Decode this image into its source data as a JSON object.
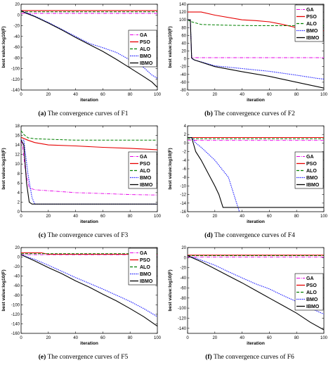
{
  "legend_labels": [
    "GA",
    "PSO",
    "ALO",
    "BMO",
    "IBMO"
  ],
  "series_colors": {
    "GA": "#e600e6",
    "PSO": "#e60000",
    "ALO": "#008000",
    "BMO": "#1a1aff",
    "IBMO": "#000000"
  },
  "panels": [
    {
      "letter": "(a)",
      "caption_text": "The convergence curves of F1"
    },
    {
      "letter": "(b)",
      "caption_text": "The convergence curves of F2"
    },
    {
      "letter": "(c)",
      "caption_text": "The convergence curves of F3"
    },
    {
      "letter": "(d)",
      "caption_text": "The convergence curves of F4"
    },
    {
      "letter": "(e)",
      "caption_text": "The convergence curves of F5"
    },
    {
      "letter": "(f)",
      "caption_text": "The convergence curves of F6"
    }
  ],
  "chart_data": [
    {
      "type": "line",
      "xlabel": "iteration",
      "ylabel": "best value:log10(F)",
      "xlim": [
        0,
        100
      ],
      "ylim": [
        -140,
        20
      ],
      "xticks": [
        0,
        20,
        40,
        60,
        80,
        100
      ],
      "yticks": [
        20,
        0,
        -20,
        -40,
        -60,
        -80,
        -100,
        -120,
        -140
      ],
      "legend_position": "right-middle",
      "series": [
        {
          "name": "GA",
          "x": [
            0,
            100
          ],
          "y": [
            3,
            3
          ]
        },
        {
          "name": "PSO",
          "x": [
            0,
            100
          ],
          "y": [
            8,
            8
          ]
        },
        {
          "name": "ALO",
          "x": [
            0,
            100
          ],
          "y": [
            6,
            6
          ]
        },
        {
          "name": "BMO",
          "x": [
            0,
            3,
            10,
            20,
            30,
            40,
            50,
            60,
            70,
            80,
            90,
            96,
            100
          ],
          "y": [
            8,
            5,
            -2,
            -14,
            -27,
            -40,
            -53,
            -61,
            -70,
            -84,
            -98,
            -112,
            -118
          ]
        },
        {
          "name": "IBMO",
          "x": [
            0,
            3,
            10,
            20,
            30,
            40,
            50,
            60,
            70,
            80,
            90,
            96,
            100
          ],
          "y": [
            8,
            4,
            -3,
            -15,
            -28,
            -42,
            -55,
            -68,
            -83,
            -99,
            -115,
            -125,
            -135
          ]
        }
      ]
    },
    {
      "type": "line",
      "xlabel": "iteration",
      "ylabel": "best value:log10(F)",
      "xlim": [
        0,
        100
      ],
      "ylim": [
        -80,
        140
      ],
      "xticks": [
        0,
        20,
        40,
        60,
        80,
        100
      ],
      "yticks": [
        140,
        120,
        100,
        80,
        60,
        40,
        20,
        0,
        -20,
        -40,
        -60,
        -80
      ],
      "legend_position": "top-right",
      "series": [
        {
          "name": "GA",
          "x": [
            0,
            2,
            3,
            100
          ],
          "y": [
            100,
            100,
            3,
            3
          ]
        },
        {
          "name": "PSO",
          "x": [
            0,
            10,
            20,
            40,
            50,
            60,
            70,
            80,
            90,
            100
          ],
          "y": [
            120,
            120,
            112,
            100,
            98,
            95,
            88,
            80,
            75,
            72
          ]
        },
        {
          "name": "ALO",
          "x": [
            0,
            3,
            10,
            30,
            50,
            60,
            80,
            100
          ],
          "y": [
            100,
            95,
            88,
            86,
            85,
            85,
            85,
            85
          ]
        },
        {
          "name": "BMO",
          "x": [
            0,
            2,
            3,
            4,
            20,
            40,
            60,
            80,
            95,
            100
          ],
          "y": [
            100,
            100,
            2,
            -2,
            -18,
            -25,
            -32,
            -42,
            -50,
            -52
          ]
        },
        {
          "name": "IBMO",
          "x": [
            0,
            2,
            3,
            5,
            20,
            40,
            60,
            80,
            100
          ],
          "y": [
            100,
            100,
            2,
            -3,
            -20,
            -33,
            -45,
            -60,
            -75
          ]
        }
      ]
    },
    {
      "type": "line",
      "xlabel": "iteration",
      "ylabel": "best value:log10(F)",
      "xlim": [
        0,
        100
      ],
      "ylim": [
        0,
        18
      ],
      "xticks": [
        0,
        20,
        40,
        60,
        80,
        100
      ],
      "yticks": [
        18,
        16,
        14,
        12,
        10,
        8,
        6,
        4,
        2,
        0
      ],
      "legend_position": "right-middle",
      "series": [
        {
          "name": "GA",
          "x": [
            0,
            1,
            3,
            6,
            10,
            20,
            40,
            60,
            80,
            100
          ],
          "y": [
            15,
            14,
            9,
            5,
            4.6,
            4.4,
            4.0,
            3.8,
            3.6,
            3.5
          ]
        },
        {
          "name": "PSO",
          "x": [
            0,
            5,
            10,
            20,
            40,
            60,
            80,
            100
          ],
          "y": [
            15.6,
            15,
            14.5,
            14,
            13.8,
            13.5,
            13.3,
            13
          ]
        },
        {
          "name": "ALO",
          "x": [
            0,
            2,
            5,
            10,
            20,
            40,
            60,
            80,
            100
          ],
          "y": [
            17,
            16.2,
            15.5,
            15.3,
            15.2,
            15.0,
            15.0,
            15.0,
            15.0
          ]
        },
        {
          "name": "BMO",
          "x": [
            0,
            2,
            5,
            8,
            10,
            100
          ],
          "y": [
            15,
            15,
            8,
            3,
            1.6,
            1.6
          ]
        },
        {
          "name": "IBMO",
          "x": [
            0,
            2,
            4,
            6,
            8,
            100
          ],
          "y": [
            15,
            14,
            6,
            2,
            1.6,
            1.6
          ]
        }
      ]
    },
    {
      "type": "line",
      "xlabel": "iteration",
      "ylabel": "best value:log10(F)",
      "xlim": [
        0,
        100
      ],
      "ylim": [
        -16,
        4
      ],
      "xticks": [
        0,
        20,
        40,
        60,
        80,
        100
      ],
      "yticks": [
        4,
        2,
        0,
        -2,
        -4,
        -6,
        -8,
        -10,
        -12,
        -14,
        -16
      ],
      "legend_position": "right-middle",
      "series": [
        {
          "name": "GA",
          "x": [
            0,
            10,
            100
          ],
          "y": [
            0.7,
            0.6,
            0.6
          ]
        },
        {
          "name": "PSO",
          "x": [
            0,
            100
          ],
          "y": [
            1.3,
            1.3
          ]
        },
        {
          "name": "ALO",
          "x": [
            0,
            100
          ],
          "y": [
            1.0,
            1.0
          ]
        },
        {
          "name": "BMO",
          "x": [
            0,
            3,
            6,
            10,
            15,
            20,
            25,
            30,
            33,
            36,
            37,
            38
          ],
          "y": [
            1.3,
            1.3,
            0,
            -1,
            -2.5,
            -4,
            -6,
            -8,
            -11,
            -14,
            -15,
            -16
          ]
        },
        {
          "name": "IBMO",
          "x": [
            0,
            3,
            6,
            10,
            15,
            20,
            23,
            26,
            100
          ],
          "y": [
            1.3,
            1.3,
            -2,
            -4,
            -7,
            -10,
            -12,
            -15,
            -15
          ]
        }
      ]
    },
    {
      "type": "line",
      "xlabel": "iteration",
      "ylabel": "best value:log10(F)",
      "xlim": [
        0,
        100
      ],
      "ylim": [
        -160,
        20
      ],
      "xticks": [
        0,
        20,
        40,
        60,
        80,
        100
      ],
      "yticks": [
        20,
        0,
        -20,
        -40,
        -60,
        -80,
        -100,
        -120,
        -140,
        -160
      ],
      "legend_position": "top-right",
      "series": [
        {
          "name": "GA",
          "x": [
            0,
            100
          ],
          "y": [
            5,
            5
          ]
        },
        {
          "name": "PSO",
          "x": [
            0,
            15,
            20,
            100
          ],
          "y": [
            9,
            9,
            6,
            6
          ]
        },
        {
          "name": "ALO",
          "x": [
            0,
            100
          ],
          "y": [
            7,
            7
          ]
        },
        {
          "name": "BMO",
          "x": [
            0,
            10,
            20,
            30,
            40,
            50,
            60,
            70,
            80,
            90,
            100
          ],
          "y": [
            5,
            -5,
            -17,
            -30,
            -43,
            -55,
            -67,
            -80,
            -93,
            -108,
            -125
          ]
        },
        {
          "name": "IBMO",
          "x": [
            0,
            10,
            20,
            30,
            40,
            50,
            60,
            70,
            80,
            90,
            100
          ],
          "y": [
            5,
            -8,
            -22,
            -35,
            -50,
            -63,
            -78,
            -92,
            -108,
            -125,
            -145
          ]
        }
      ]
    },
    {
      "type": "line",
      "xlabel": "iteration",
      "ylabel": "best value:log10(F)",
      "xlim": [
        0,
        100
      ],
      "ylim": [
        -150,
        20
      ],
      "xticks": [
        0,
        20,
        40,
        60,
        80,
        100
      ],
      "yticks": [
        20,
        0,
        -20,
        -40,
        -60,
        -80,
        -100,
        -120,
        -140
      ],
      "legend_position": "right-middle",
      "series": [
        {
          "name": "GA",
          "x": [
            0,
            100
          ],
          "y": [
            1,
            1
          ]
        },
        {
          "name": "PSO",
          "x": [
            0,
            100
          ],
          "y": [
            5,
            5
          ]
        },
        {
          "name": "ALO",
          "x": [
            0,
            100
          ],
          "y": [
            4,
            4
          ]
        },
        {
          "name": "BMO",
          "x": [
            0,
            10,
            20,
            30,
            40,
            50,
            60,
            70,
            80,
            90,
            100
          ],
          "y": [
            4,
            -5,
            -15,
            -28,
            -40,
            -52,
            -62,
            -75,
            -87,
            -100,
            -112
          ]
        },
        {
          "name": "IBMO",
          "x": [
            0,
            10,
            20,
            30,
            40,
            50,
            60,
            70,
            80,
            90,
            100
          ],
          "y": [
            4,
            -8,
            -22,
            -36,
            -50,
            -65,
            -80,
            -95,
            -110,
            -128,
            -143
          ]
        }
      ]
    }
  ]
}
